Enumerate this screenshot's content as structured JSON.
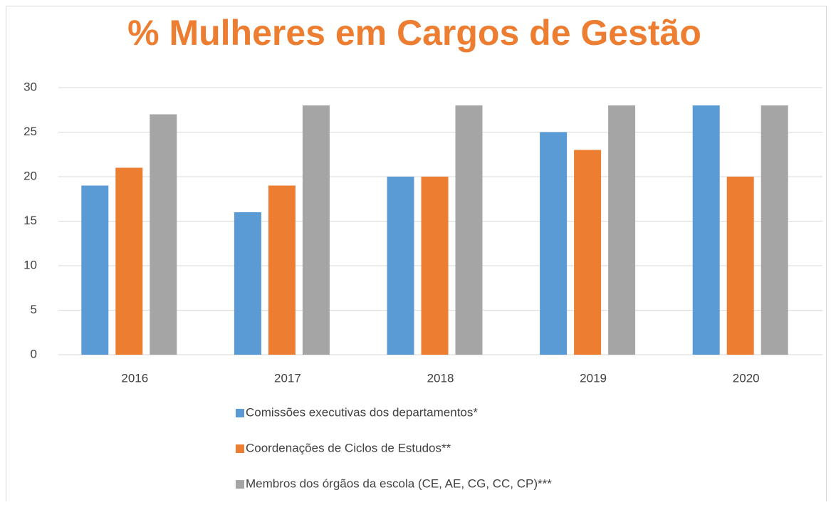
{
  "chart_data": {
    "type": "bar",
    "title": "% Mulheres em Cargos de Gestão",
    "categories": [
      "2016",
      "2017",
      "2018",
      "2019",
      "2020"
    ],
    "series": [
      {
        "name": "Comissões executivas dos departamentos*",
        "color": "#5b9bd5",
        "values": [
          19,
          16,
          20,
          25,
          28
        ]
      },
      {
        "name": "Coordenações de Ciclos de Estudos**",
        "color": "#ed7d31",
        "values": [
          21,
          19,
          20,
          23,
          20
        ]
      },
      {
        "name": "Membros dos órgãos da escola (CE, AE, CG, CC, CP)***",
        "color": "#a5a5a5",
        "values": [
          27,
          28,
          28,
          28,
          28
        ]
      }
    ],
    "ylim": [
      0,
      30
    ],
    "yticks": [
      0,
      5,
      10,
      15,
      20,
      25,
      30
    ],
    "grid": true,
    "legend": "bottom"
  }
}
